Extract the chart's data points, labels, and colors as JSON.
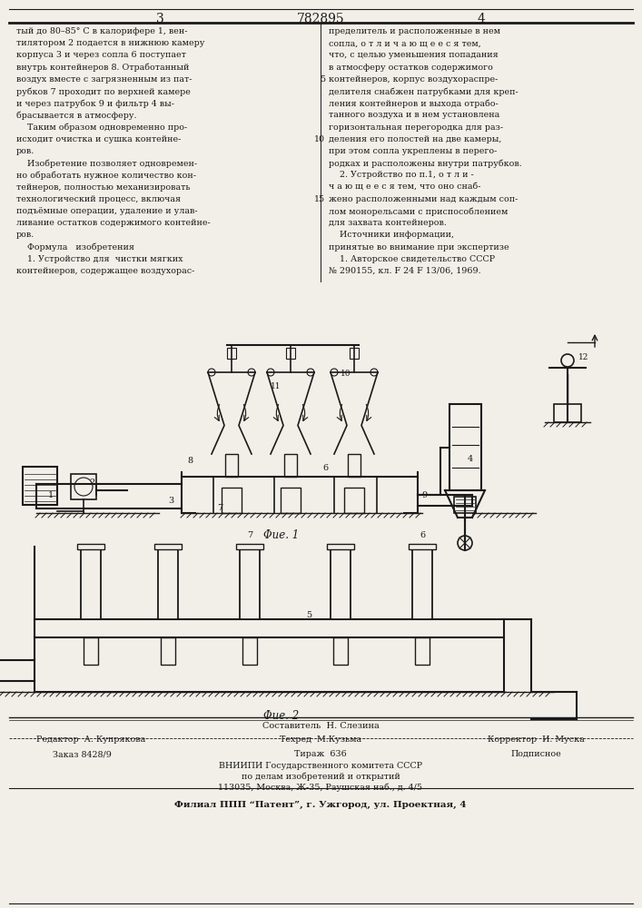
{
  "page_number_left": "3",
  "page_number_center": "782895",
  "page_number_right": "4",
  "background_color": "#f2efe8",
  "text_color": "#1a1a1a",
  "col1_text": [
    "тый до 80–85° С в калорифере 1, вен-",
    "тилятором 2 подается в нижнюю камеру",
    "корпуса 3 и через сопла 6 поступает",
    "внутрь контейнеров 8. Отработанный",
    "воздух вместе с загрязненным из пат-",
    "рубков 7 проходит по верхней камере",
    "и через патрубок 9 и фильтр 4 вы-",
    "брасывается в атмосферу.",
    "    Таким образом одновременно про-",
    "исходит очистка и сушка контейне-",
    "ров.",
    "    Изобретение позволяет одновремен-",
    "но обработать нужное количество кон-",
    "тейнеров, полностью механизировать",
    "технологический процесс, включая",
    "подъёмные операции, удаление и улав-",
    "ливание остатков содержимого контейне-",
    "ров.",
    "    Формула   изобретения",
    "    1. Устройство для  чистки мягких",
    "контейнеров, содержащее воздухорас-"
  ],
  "col2_text_with_linenum": [
    [
      "пределитель и расположенные в нем",
      ""
    ],
    [
      "сопла, о т л и ч а ю щ е е с я тем,",
      ""
    ],
    [
      "что, с целью уменьшения попадания",
      ""
    ],
    [
      "в атмосферу остатков содержимого",
      ""
    ],
    [
      "контейнеров, корпус воздухораспре-",
      "5"
    ],
    [
      "делителя снабжен патрубками для креп-",
      ""
    ],
    [
      "ления контейнеров и выхода отрабо-",
      ""
    ],
    [
      "танного воздуха и в нем установлена",
      ""
    ],
    [
      "горизонтальная перегородка для раз-",
      ""
    ],
    [
      "деления его полостей на две камеры,",
      "10"
    ],
    [
      "при этом сопла укреплены в перего-",
      ""
    ],
    [
      "родках и расположены внутри патрубков.",
      ""
    ],
    [
      "    2. Устройство по п.1, о т л и -",
      ""
    ],
    [
      "ч а ю щ е е с я тем, что оно снаб-",
      ""
    ],
    [
      "жено расположенными над каждым соп-",
      "15"
    ],
    [
      "лом монорельсами с приспособлением",
      ""
    ],
    [
      "для захвата контейнеров.",
      ""
    ],
    [
      "    Источники информации,",
      ""
    ],
    [
      "принятые во внимание при экспертизе",
      ""
    ],
    [
      "    1. Авторское свидетельство СССР",
      ""
    ],
    [
      "№ 290155, кл. F 24 F 13/06, 1969.",
      ""
    ]
  ],
  "fig1_caption": "Φue. 1",
  "fig2_caption": "Φue. 2",
  "footer_line1": "Составитель  Н. Слезина",
  "footer_line2_left": "Редактор  А. Купрякова",
  "footer_line2_mid": "Техред  М.Кузьма",
  "footer_line2_right": "Корректор  И. Муска",
  "footer_line3_left": "Заказ 8428/9",
  "footer_line3_mid": "Тираж  636",
  "footer_line3_right": "Подписное",
  "footer_line4": "ВНИИПИ Государственного комитета СССР",
  "footer_line5": "по делам изобретений и открытий",
  "footer_line6": "113035, Москва, Ж-35, Раушская наб., д. 4/5",
  "footer_line7": "Филиал ППП “Патент”, г. Ужгород, ул. Проектная, 4"
}
